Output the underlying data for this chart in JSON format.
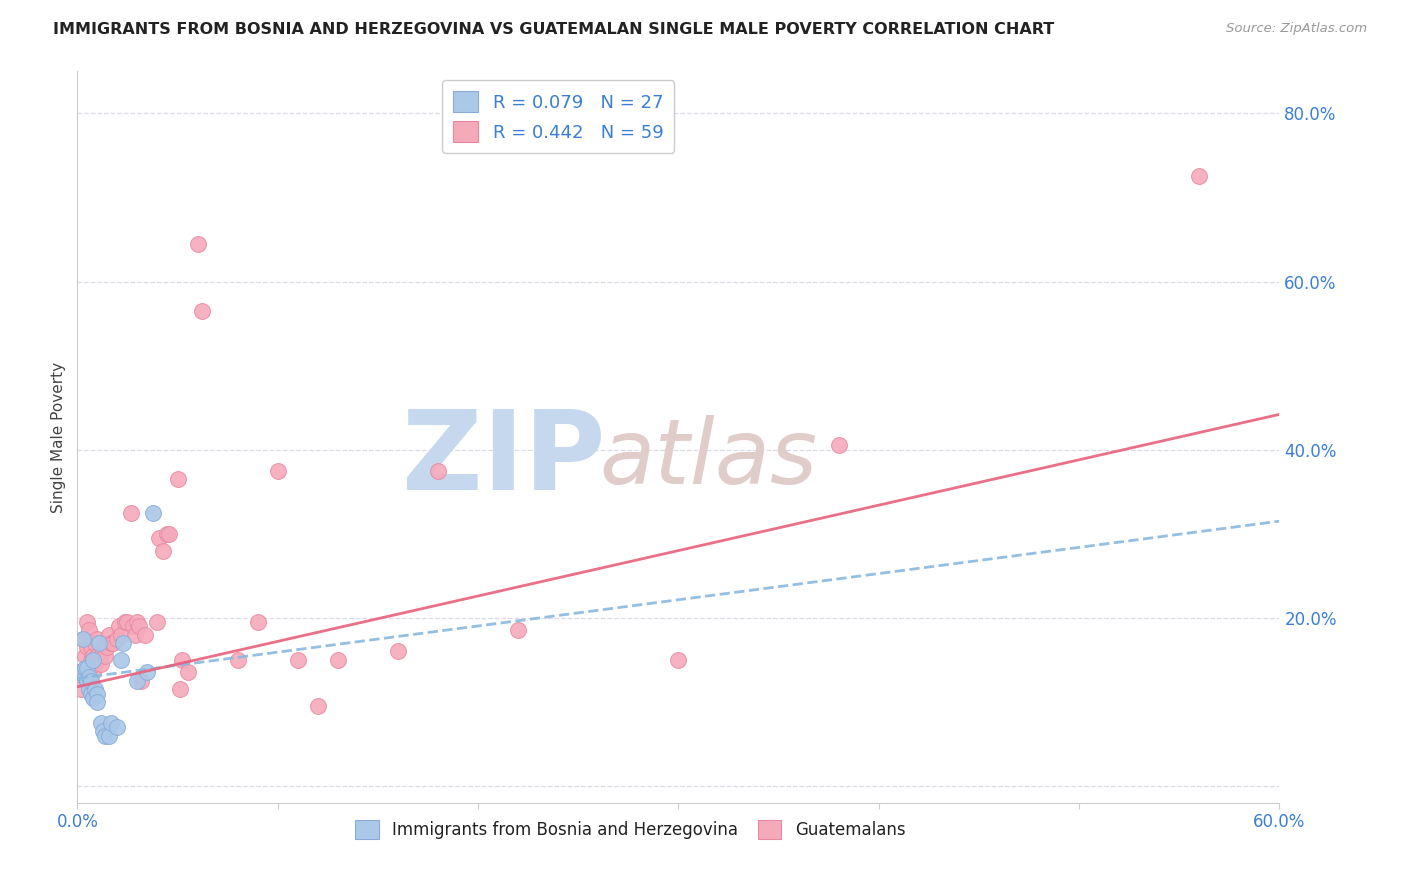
{
  "title": "IMMIGRANTS FROM BOSNIA AND HERZEGOVINA VS GUATEMALAN SINGLE MALE POVERTY CORRELATION CHART",
  "source": "Source: ZipAtlas.com",
  "ylabel": "Single Male Poverty",
  "legend_label1": "Immigrants from Bosnia and Herzegovina",
  "legend_label2": "Guatemalans",
  "r1": "0.079",
  "n1": "27",
  "r2": "0.442",
  "n2": "59",
  "blue_scatter_color": "#aac8e8",
  "pink_scatter_color": "#f5aaba",
  "blue_edge_color": "#88aad8",
  "pink_edge_color": "#e888a0",
  "blue_line_color": "#88b8e0",
  "pink_line_color": "#e8607a",
  "title_color": "#222222",
  "stat_color": "#3a7fd5",
  "watermark_zip_color": "#c5d8ee",
  "watermark_atlas_color": "#e0ccc8",
  "grid_color": "#d8d8e8",
  "xlim": [
    0.0,
    0.6
  ],
  "ylim": [
    -0.02,
    0.85
  ],
  "yticks": [
    0.0,
    0.2,
    0.4,
    0.6,
    0.8
  ],
  "xticks": [
    0.0,
    0.1,
    0.2,
    0.3,
    0.4,
    0.5,
    0.6
  ],
  "blue_points": [
    [
      0.002,
      0.135
    ],
    [
      0.003,
      0.175
    ],
    [
      0.004,
      0.13
    ],
    [
      0.004,
      0.14
    ],
    [
      0.005,
      0.125
    ],
    [
      0.005,
      0.14
    ],
    [
      0.006,
      0.115
    ],
    [
      0.006,
      0.13
    ],
    [
      0.007,
      0.11
    ],
    [
      0.007,
      0.125
    ],
    [
      0.008,
      0.105
    ],
    [
      0.008,
      0.15
    ],
    [
      0.009,
      0.115
    ],
    [
      0.01,
      0.11
    ],
    [
      0.01,
      0.1
    ],
    [
      0.011,
      0.17
    ],
    [
      0.012,
      0.075
    ],
    [
      0.013,
      0.065
    ],
    [
      0.014,
      0.06
    ],
    [
      0.016,
      0.06
    ],
    [
      0.017,
      0.075
    ],
    [
      0.02,
      0.07
    ],
    [
      0.022,
      0.15
    ],
    [
      0.023,
      0.17
    ],
    [
      0.03,
      0.125
    ],
    [
      0.035,
      0.135
    ],
    [
      0.038,
      0.325
    ]
  ],
  "pink_points": [
    [
      0.001,
      0.135
    ],
    [
      0.002,
      0.115
    ],
    [
      0.003,
      0.175
    ],
    [
      0.004,
      0.155
    ],
    [
      0.004,
      0.135
    ],
    [
      0.005,
      0.195
    ],
    [
      0.005,
      0.165
    ],
    [
      0.006,
      0.185
    ],
    [
      0.007,
      0.15
    ],
    [
      0.007,
      0.165
    ],
    [
      0.008,
      0.135
    ],
    [
      0.008,
      0.155
    ],
    [
      0.009,
      0.145
    ],
    [
      0.009,
      0.17
    ],
    [
      0.01,
      0.155
    ],
    [
      0.01,
      0.175
    ],
    [
      0.011,
      0.15
    ],
    [
      0.012,
      0.145
    ],
    [
      0.013,
      0.16
    ],
    [
      0.014,
      0.155
    ],
    [
      0.015,
      0.165
    ],
    [
      0.016,
      0.18
    ],
    [
      0.017,
      0.17
    ],
    [
      0.018,
      0.17
    ],
    [
      0.02,
      0.175
    ],
    [
      0.021,
      0.19
    ],
    [
      0.022,
      0.18
    ],
    [
      0.024,
      0.195
    ],
    [
      0.025,
      0.195
    ],
    [
      0.027,
      0.325
    ],
    [
      0.028,
      0.19
    ],
    [
      0.029,
      0.18
    ],
    [
      0.03,
      0.195
    ],
    [
      0.031,
      0.19
    ],
    [
      0.032,
      0.125
    ],
    [
      0.034,
      0.18
    ],
    [
      0.04,
      0.195
    ],
    [
      0.041,
      0.295
    ],
    [
      0.043,
      0.28
    ],
    [
      0.045,
      0.3
    ],
    [
      0.046,
      0.3
    ],
    [
      0.05,
      0.365
    ],
    [
      0.051,
      0.115
    ],
    [
      0.052,
      0.15
    ],
    [
      0.055,
      0.135
    ],
    [
      0.06,
      0.645
    ],
    [
      0.062,
      0.565
    ],
    [
      0.08,
      0.15
    ],
    [
      0.09,
      0.195
    ],
    [
      0.1,
      0.375
    ],
    [
      0.11,
      0.15
    ],
    [
      0.12,
      0.095
    ],
    [
      0.13,
      0.15
    ],
    [
      0.16,
      0.16
    ],
    [
      0.18,
      0.375
    ],
    [
      0.22,
      0.185
    ],
    [
      0.3,
      0.15
    ],
    [
      0.38,
      0.405
    ],
    [
      0.56,
      0.725
    ]
  ],
  "blue_line": [
    [
      0.0,
      0.128
    ],
    [
      0.6,
      0.315
    ]
  ],
  "pink_line": [
    [
      0.0,
      0.118
    ],
    [
      0.6,
      0.442
    ]
  ]
}
